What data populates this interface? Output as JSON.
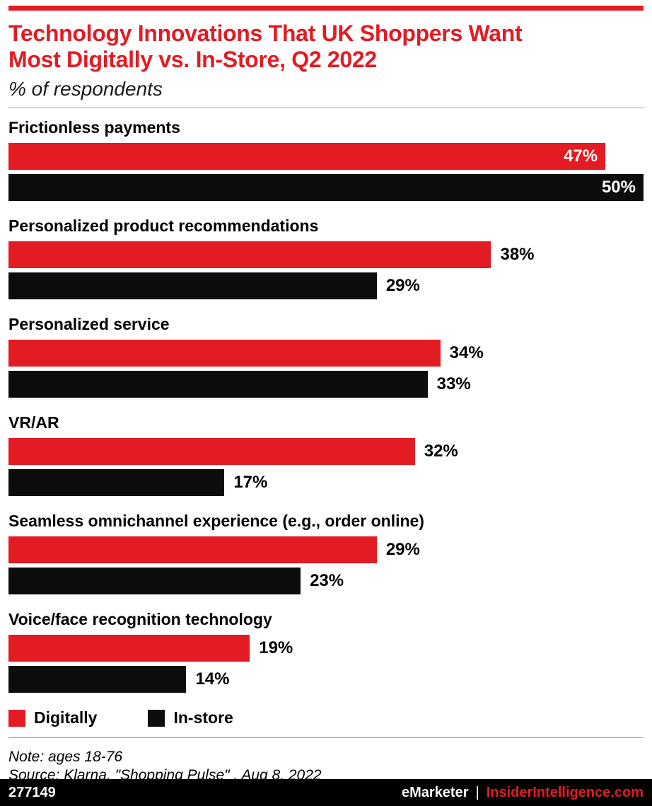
{
  "colors": {
    "red": "#e31b23",
    "bar_black": "#0d0d0d",
    "divider": "#9b9b9b",
    "footer_bg": "#000000",
    "footer_text": "#ffffff"
  },
  "chart_data": {
    "type": "bar",
    "orientation": "horizontal",
    "title": "Technology Innovations That UK Shoppers Want Most Digitally vs. In-Store, Q2 2022",
    "title_lines": [
      "Technology Innovations That UK Shoppers Want",
      "Most Digitally vs. In-Store, Q2 2022"
    ],
    "subtitle": "% of respondents",
    "categories": [
      "Frictionless payments",
      "Personalized product recommendations",
      "Personalized service",
      "VR/AR",
      "Seamless omnichannel experience (e.g., order online)",
      "Voice/face recognition technology"
    ],
    "series": [
      {
        "name": "Digitally",
        "color": "#e31b23",
        "values": [
          47,
          38,
          34,
          32,
          29,
          19
        ]
      },
      {
        "name": "In-store",
        "color": "#0d0d0d",
        "values": [
          50,
          29,
          33,
          17,
          23,
          14
        ]
      }
    ],
    "xlim": [
      0,
      50
    ],
    "value_suffix": "%",
    "grid": false,
    "legend_position": "bottom",
    "note": "Note: ages 18-76",
    "source": "Source: Klarna, \"Shopping Pulse\" , Aug 8, 2022"
  },
  "footer": {
    "id": "277149",
    "brand": "eMarketer",
    "separator": "|",
    "site": "InsiderIntelligence.com"
  }
}
